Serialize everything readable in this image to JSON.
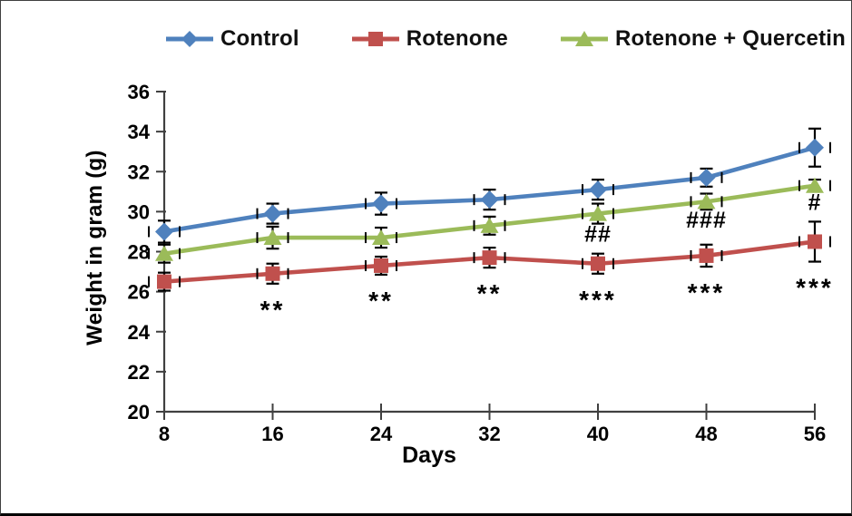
{
  "frame": {
    "background": "#ffffff",
    "border_color": "#3f3f3f",
    "bottom_border_color": "#000000"
  },
  "legend": {
    "position": "top",
    "items": [
      {
        "label": "Control",
        "color": "#4F81BD",
        "marker": "diamond"
      },
      {
        "label": "Rotenone",
        "color": "#C0504D",
        "marker": "square"
      },
      {
        "label": "Rotenone + Quercetin",
        "color": "#9BBB59",
        "marker": "triangle"
      }
    ]
  },
  "chart_data": {
    "type": "line",
    "title": "",
    "xlabel": "Days",
    "ylabel": "Weight in gram (g)",
    "x": [
      8,
      16,
      24,
      32,
      40,
      48,
      56
    ],
    "xlim": [
      8,
      56
    ],
    "ylim": [
      20,
      36
    ],
    "ytick_step": 2,
    "yticks": [
      20,
      22,
      24,
      26,
      28,
      30,
      32,
      34,
      36
    ],
    "grid": false,
    "legend_position": "top",
    "error_bars": true,
    "axis_color": "#404040",
    "annotation_color": "#000000",
    "series": [
      {
        "name": "Control",
        "color": "#4F81BD",
        "marker": "diamond",
        "values": [
          29.0,
          29.9,
          30.4,
          30.6,
          31.1,
          31.7,
          33.2
        ],
        "errors": [
          0.55,
          0.5,
          0.55,
          0.5,
          0.5,
          0.45,
          0.95
        ],
        "annotations": [
          null,
          null,
          null,
          null,
          null,
          null,
          null
        ]
      },
      {
        "name": "Rotenone + Quercetin",
        "color": "#9BBB59",
        "marker": "triangle",
        "values": [
          27.9,
          28.7,
          28.7,
          29.3,
          29.9,
          30.5,
          31.3
        ],
        "errors": [
          0.45,
          0.55,
          0.5,
          0.45,
          0.5,
          0.4,
          0.3
        ],
        "annotations": [
          null,
          null,
          null,
          null,
          "##",
          "###",
          "#"
        ]
      },
      {
        "name": "Rotenone",
        "color": "#C0504D",
        "marker": "square",
        "values": [
          26.5,
          26.9,
          27.3,
          27.7,
          27.4,
          27.8,
          28.5
        ],
        "errors": [
          0.45,
          0.5,
          0.45,
          0.5,
          0.5,
          0.55,
          1.0
        ],
        "annotations": [
          null,
          "**",
          "**",
          "**",
          "***",
          "***",
          "***"
        ]
      }
    ]
  }
}
